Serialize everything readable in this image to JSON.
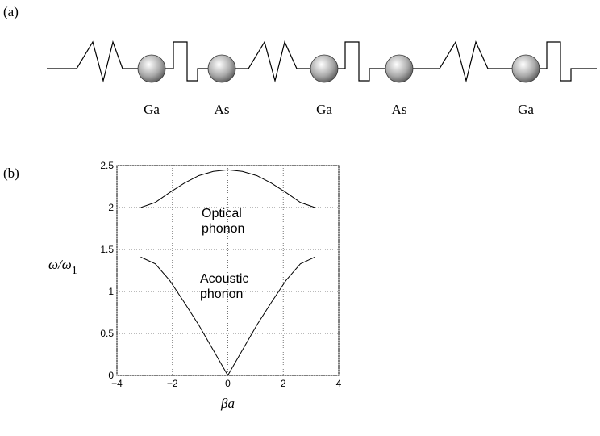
{
  "diagram": {
    "panel_label": "(a)",
    "atoms": [
      "Ga",
      "As",
      "Ga",
      "As",
      "Ga"
    ]
  },
  "chart_data": {
    "type": "line",
    "panel_label": "(b)",
    "xlabel": "βa",
    "ylabel": {
      "text": "ω/ω",
      "sub": "1"
    },
    "x": [
      -3.1416,
      -2.618,
      -2.0944,
      -1.5708,
      -1.0472,
      -0.5236,
      0,
      0.5236,
      1.0472,
      1.5708,
      2.0944,
      2.618,
      3.1416
    ],
    "series": [
      {
        "color": "#000000",
        "values": [
          2,
          2.06,
          2.18,
          2.29,
          2.38,
          2.43,
          2.45,
          2.43,
          2.38,
          2.29,
          2.18,
          2.06,
          2
        ]
      },
      {
        "color": "#000000",
        "values": [
          1.41,
          1.33,
          1.13,
          0.87,
          0.6,
          0.3,
          0,
          0.3,
          0.6,
          0.87,
          1.13,
          1.33,
          1.41
        ]
      }
    ],
    "annotations": [
      {
        "lines": [
          "Optical",
          "phonon"
        ]
      },
      {
        "lines": [
          "Acoustic",
          "phonon"
        ]
      }
    ],
    "xlim": [
      -4,
      4
    ],
    "xticks": [
      {
        "value": -4,
        "label": "−4"
      },
      {
        "value": -2,
        "label": "−2"
      },
      0,
      2,
      4
    ],
    "ylim": [
      0,
      2.5
    ],
    "yticks": [
      0,
      0.5,
      1,
      1.5,
      2,
      2.5
    ],
    "grid": true
  }
}
